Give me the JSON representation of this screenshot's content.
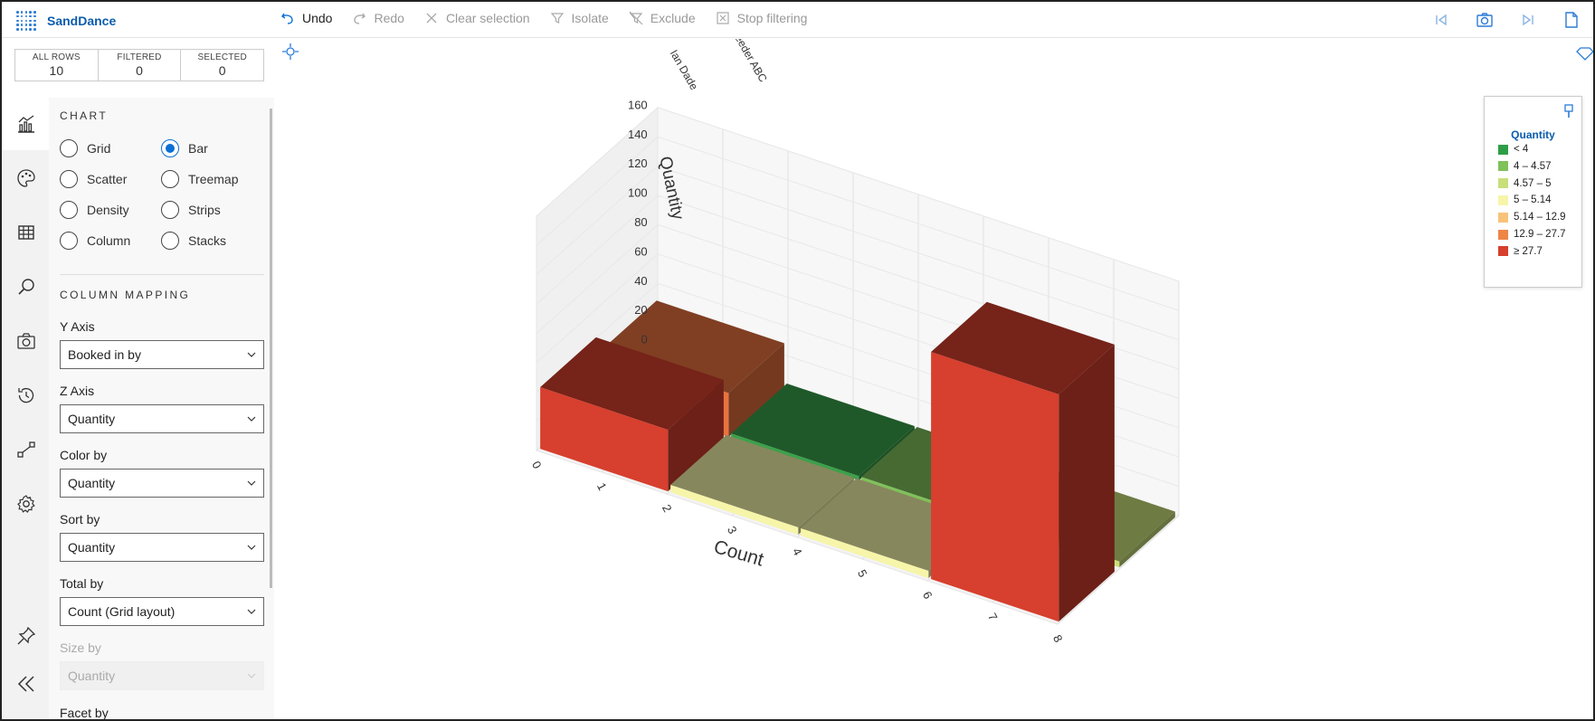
{
  "app": {
    "title": "SandDance"
  },
  "toolbar": {
    "undo": "Undo",
    "redo": "Redo",
    "clear_selection": "Clear selection",
    "isolate": "Isolate",
    "exclude": "Exclude",
    "stop_filtering": "Stop filtering"
  },
  "counts": {
    "all_rows_label": "ALL ROWS",
    "all_rows": "10",
    "filtered_label": "FILTERED",
    "filtered": "0",
    "selected_label": "SELECTED",
    "selected": "0"
  },
  "sidebar": {
    "chart_title": "CHART",
    "chart_types": [
      "Grid",
      "Bar",
      "Scatter",
      "Treemap",
      "Density",
      "Strips",
      "Column",
      "Stacks"
    ],
    "selected_chart_type": "Bar",
    "column_mapping_title": "COLUMN MAPPING",
    "y_axis_label": "Y Axis",
    "y_axis_value": "Booked in by",
    "z_axis_label": "Z Axis",
    "z_axis_value": "Quantity",
    "color_by_label": "Color by",
    "color_by_value": "Quantity",
    "sort_by_label": "Sort by",
    "sort_by_value": "Quantity",
    "total_by_label": "Total by",
    "total_by_value": "Count (Grid layout)",
    "size_by_label": "Size by",
    "size_by_value": "Quantity",
    "facet_by_label": "Facet by"
  },
  "icons": {
    "rail": [
      "chart-icon",
      "palette-icon",
      "table-icon",
      "search-icon",
      "camera-icon",
      "history-icon",
      "transition-icon",
      "settings-icon",
      "pin-icon",
      "collapse-icon"
    ]
  },
  "chart_data": {
    "type": "bar",
    "projection": "3d",
    "y_axis_title": "Booked in by",
    "y_categories": [
      "Ian Dade",
      "StoreFeeder ABC"
    ],
    "z_axis_title": "Quantity",
    "z_ticks": [
      "0",
      "20",
      "40",
      "60",
      "80",
      "100",
      "120",
      "140",
      "160"
    ],
    "zlim": [
      0,
      160
    ],
    "x_axis_title": "Count",
    "x_ticks": [
      "0",
      "1",
      "2",
      "3",
      "4",
      "5",
      "6",
      "7",
      "8"
    ],
    "bars": [
      {
        "row": "Ian Dade",
        "x_start": 0,
        "x_end": 2,
        "quantity": 42,
        "color": "#d73f2e"
      },
      {
        "row": "Ian Dade",
        "x_start": 2,
        "x_end": 4,
        "quantity": 5,
        "color": "#f6f5a9"
      },
      {
        "row": "Ian Dade",
        "x_start": 4,
        "x_end": 6,
        "quantity": 5,
        "color": "#f6f5a9"
      },
      {
        "row": "Ian Dade",
        "x_start": 6,
        "x_end": 8,
        "quantity": 155,
        "color": "#d73f2e"
      },
      {
        "row": "StoreFeeder ABC",
        "x_start": 0,
        "x_end": 2,
        "quantity": 30,
        "color": "#e9723f"
      },
      {
        "row": "StoreFeeder ABC",
        "x_start": 2,
        "x_end": 4,
        "quantity": 3,
        "color": "#3aa14a"
      },
      {
        "row": "StoreFeeder ABC",
        "x_start": 4,
        "x_end": 6,
        "quantity": 3,
        "color": "#7fc15a"
      },
      {
        "row": "StoreFeeder ABC",
        "x_start": 6,
        "x_end": 8,
        "quantity": 4,
        "color": "#c8df7a"
      }
    ]
  },
  "legend": {
    "title": "Quantity",
    "items": [
      {
        "label": "< 4",
        "color": "#2e9e46"
      },
      {
        "label": "4 – 4.57",
        "color": "#7fc15a"
      },
      {
        "label": "4.57 – 5",
        "color": "#c8df7a"
      },
      {
        "label": "5 – 5.14",
        "color": "#f6f5a9"
      },
      {
        "label": "5.14 – 12.9",
        "color": "#f8c27a"
      },
      {
        "label": "12.9 – 27.7",
        "color": "#ee8547"
      },
      {
        "label": "≥ 27.7",
        "color": "#d73f2e"
      }
    ]
  }
}
